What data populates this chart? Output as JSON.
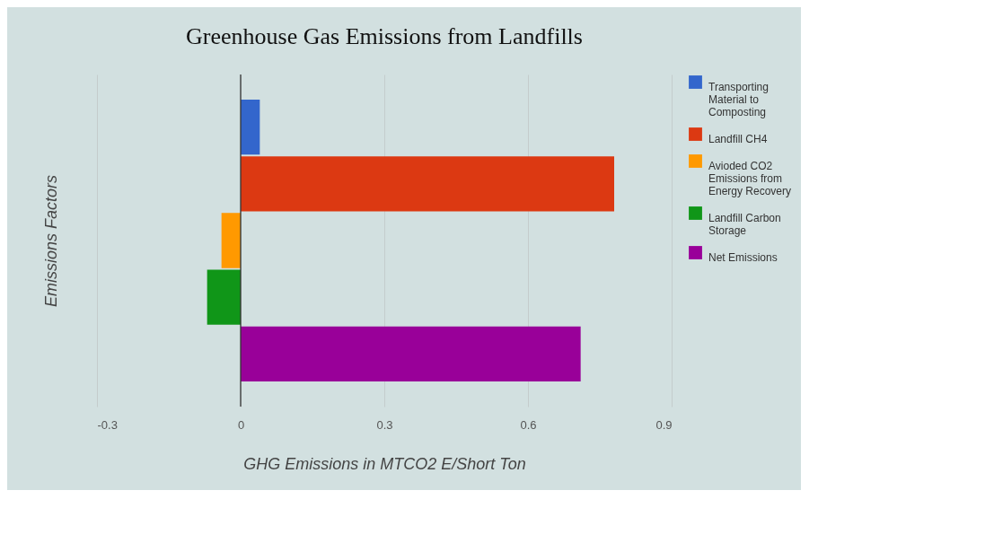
{
  "chart_data": {
    "type": "bar",
    "orientation": "horizontal",
    "title": "Greenhouse Gas Emissions from Landfills",
    "xlabel": "GHG Emissions in MTCO2 E/Short Ton",
    "ylabel": "Emissions Factors",
    "categories": [
      null
    ],
    "series": [
      {
        "name": "Transporting Material to Composting",
        "color": "#3366cc",
        "values": [
          0.04
        ]
      },
      {
        "name": "Landfill CH4",
        "color": "#dc3912",
        "values": [
          0.78
        ]
      },
      {
        "name": "Avioded CO2 Emissions from Energy Recovery",
        "color": "#ff9900",
        "values": [
          -0.04
        ]
      },
      {
        "name": "Landfill Carbon Storage",
        "color": "#109618",
        "values": [
          -0.07
        ]
      },
      {
        "name": "Net Emissions",
        "color": "#990099",
        "values": [
          0.71
        ]
      }
    ],
    "xlim": [
      -0.3,
      0.9
    ],
    "xticks": [
      {
        "value": -0.3,
        "label": "-0.3"
      },
      0,
      0.3,
      0.6,
      0.9
    ],
    "grid": "x",
    "legend": "right",
    "ref_lines": [
      {
        "axis": "x",
        "value": 0,
        "color": "#333333"
      }
    ]
  }
}
